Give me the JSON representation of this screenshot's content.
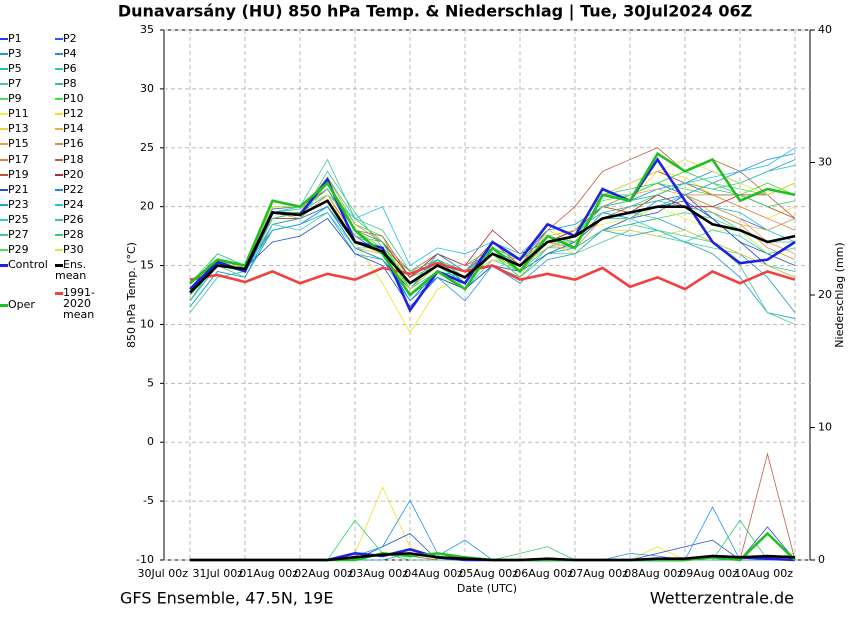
{
  "chart_data": {
    "type": "line",
    "title": "Dunavarsány  (HU)  850 hPa Temp. & Niederschlag | Tue, 30Jul2024 06Z",
    "ylabel": "850 hPa Temp. (°C)",
    "y2label": "Niederschlag (mm)",
    "xlabel": "Date (UTC)",
    "footer_left": "GFS Ensemble, 47.5N, 19E",
    "footer_right": "Wetterzentrale.de",
    "categories": [
      "30Jul 00z",
      null,
      "31Jul 00z",
      null,
      "01Aug 00z",
      null,
      "02Aug 00z",
      null,
      "03Aug 00z",
      null,
      "04Aug 00z",
      null,
      "05Aug 00z",
      null,
      "06Aug 00z",
      null,
      "07Aug 00z",
      null,
      "08Aug 00z",
      null,
      "09Aug 00z",
      null,
      "10Aug 00z"
    ],
    "ylim": [
      -10,
      35
    ],
    "yticks": [
      -10,
      -5,
      0,
      5,
      10,
      15,
      20,
      25,
      30,
      35
    ],
    "y2lim": [
      0,
      40
    ],
    "y2ticks": [
      0,
      10,
      20,
      30,
      40
    ],
    "grid": true,
    "series": [
      {
        "name": "P1",
        "color": "#2040e0",
        "values": [
          12.5,
          15.2,
          14.5,
          19,
          19,
          20,
          16.5,
          15.5,
          13,
          15.5,
          13.5,
          16.5,
          15,
          17.5,
          16.5,
          18,
          19,
          19.5,
          21,
          19,
          17,
          15,
          14
        ]
      },
      {
        "name": "P2",
        "color": "#2060f0",
        "values": [
          13,
          15.5,
          15,
          19.8,
          20,
          21.5,
          17.5,
          16,
          12,
          14.5,
          14,
          17,
          15.5,
          18,
          18.5,
          20,
          21,
          22,
          21,
          20,
          19,
          18,
          19
        ]
      },
      {
        "name": "P3",
        "color": "#20a0c0",
        "values": [
          11.5,
          14.5,
          14,
          18,
          18.5,
          19.5,
          16,
          15.5,
          12.5,
          14,
          13,
          15,
          14,
          16,
          16.5,
          18,
          18.5,
          19,
          18,
          17,
          16,
          14,
          11
        ]
      },
      {
        "name": "P4",
        "color": "#2090e0",
        "values": [
          12,
          15,
          15,
          19,
          19.5,
          20.5,
          17,
          16.5,
          14,
          16,
          14.5,
          16.5,
          15.5,
          17,
          18,
          20,
          20.5,
          21.5,
          22,
          23,
          22,
          23,
          24
        ]
      },
      {
        "name": "P5",
        "color": "#20c0c0",
        "values": [
          12.8,
          15.5,
          14.8,
          19.5,
          19.8,
          21.5,
          18,
          17,
          13,
          14.5,
          14,
          16,
          15,
          17,
          17,
          19.5,
          19,
          20,
          21,
          20,
          19.5,
          18,
          17
        ]
      },
      {
        "name": "P6",
        "color": "#30c8b0",
        "values": [
          11,
          14,
          14.5,
          18,
          18.5,
          20,
          17,
          16,
          14,
          15.5,
          13,
          15.5,
          14.5,
          16.5,
          17.5,
          19,
          20,
          21,
          22,
          21.5,
          22,
          23,
          23.5
        ]
      },
      {
        "name": "P7",
        "color": "#40d090",
        "values": [
          13,
          15,
          14.5,
          19,
          19.5,
          22.5,
          19,
          17,
          14,
          15,
          14.5,
          16,
          14,
          16,
          16,
          17,
          18,
          17.5,
          17,
          16.5,
          16,
          15,
          14.5
        ]
      },
      {
        "name": "P8",
        "color": "#30c880",
        "values": [
          12.5,
          15,
          14,
          18.5,
          19,
          23,
          19.5,
          16.5,
          14.5,
          16,
          15,
          16.5,
          15,
          17,
          18,
          21,
          21.5,
          22,
          23,
          22,
          21,
          20,
          19
        ]
      },
      {
        "name": "P9",
        "color": "#50e060",
        "values": [
          12,
          15.5,
          14.5,
          19,
          19,
          22,
          18,
          16,
          13.5,
          15,
          14,
          15.5,
          14.5,
          17,
          17,
          19,
          19.5,
          19,
          19.5,
          19,
          18,
          16,
          15
        ]
      },
      {
        "name": "P10",
        "color": "#40e030",
        "values": [
          13.5,
          16,
          15,
          20,
          20,
          22,
          18.5,
          17.5,
          13,
          15,
          13.5,
          16,
          14.5,
          17,
          18,
          21,
          21,
          22,
          21.5,
          21,
          21,
          22,
          21
        ]
      },
      {
        "name": "P11",
        "color": "#f0f040",
        "values": [
          12.5,
          15.5,
          15,
          20.5,
          20,
          21,
          17,
          16.5,
          14,
          15.5,
          14,
          16.5,
          15,
          17.5,
          18,
          18.5,
          19,
          20,
          19,
          18,
          18,
          16,
          15
        ]
      },
      {
        "name": "P12",
        "color": "#f0e020",
        "values": [
          13,
          15,
          15,
          20,
          20,
          21,
          17,
          13.5,
          9.3,
          13,
          14,
          16,
          14,
          18,
          17,
          21.5,
          20.5,
          23,
          22.5,
          21,
          20,
          19,
          20
        ],
        "precip": [
          0,
          0,
          0,
          0,
          0,
          0,
          0.5,
          5.5,
          1,
          0,
          0,
          0,
          0,
          0,
          0,
          0,
          0,
          1,
          0,
          0,
          0,
          0,
          0
        ]
      },
      {
        "name": "P13",
        "color": "#f0d040",
        "values": [
          12.5,
          15.5,
          14.5,
          19,
          19.5,
          20.5,
          17,
          16,
          13,
          15,
          14,
          15.5,
          15,
          17,
          16,
          18,
          18,
          17.5,
          18,
          17,
          16,
          15,
          14
        ]
      },
      {
        "name": "P14",
        "color": "#e8b040",
        "values": [
          12,
          15,
          14.8,
          18.5,
          19,
          20,
          16.5,
          16,
          13.5,
          15.5,
          14.5,
          16,
          15,
          16.5,
          17,
          19.5,
          20,
          20.5,
          21,
          19.5,
          18.5,
          18,
          19
        ]
      },
      {
        "name": "P15",
        "color": "#e8a040",
        "values": [
          12.8,
          15,
          15,
          19.5,
          19,
          21,
          17.5,
          16.5,
          13,
          15,
          14,
          16.5,
          15.5,
          17.5,
          18,
          20,
          21,
          21.5,
          21,
          20,
          19,
          17,
          16
        ]
      },
      {
        "name": "P16",
        "color": "#d09040",
        "values": [
          12.5,
          15.5,
          14.5,
          19,
          19.5,
          22.5,
          18.5,
          17,
          14,
          15.5,
          14,
          17,
          15,
          17,
          16.5,
          19,
          19.5,
          21,
          20,
          19.5,
          18.5,
          16.5,
          15.5
        ]
      },
      {
        "name": "P17",
        "color": "#d88050",
        "values": [
          13,
          15,
          14.5,
          19,
          19.5,
          21,
          17.5,
          17,
          14.5,
          16,
          15,
          16,
          15.5,
          17,
          17.5,
          19,
          20,
          20.5,
          21,
          21,
          20,
          19,
          18
        ]
      },
      {
        "name": "P18",
        "color": "#c06040",
        "values": [
          12.5,
          15.5,
          15,
          19.5,
          20,
          21.5,
          18,
          17.5,
          14,
          15.5,
          14.5,
          17,
          15,
          18,
          20,
          23,
          24,
          25,
          23,
          24,
          23,
          21,
          19
        ],
        "precip": [
          0,
          0,
          0,
          0,
          0,
          0,
          0,
          0.5,
          0.3,
          0,
          0,
          0,
          0,
          0,
          0,
          0,
          0,
          0,
          0,
          0,
          0,
          8,
          0
        ]
      },
      {
        "name": "P19",
        "color": "#c05030",
        "values": [
          12,
          15,
          14.5,
          19,
          19,
          20,
          17,
          16,
          13,
          15,
          14,
          16,
          15,
          17,
          18,
          21,
          22,
          23,
          22,
          21,
          21,
          20,
          19
        ]
      },
      {
        "name": "P20",
        "color": "#b03030",
        "values": [
          13,
          15.5,
          15,
          19.5,
          19.5,
          22,
          18,
          17,
          14,
          16,
          15,
          18,
          16,
          17,
          18,
          20,
          19.5,
          21,
          20,
          20,
          21,
          21,
          22
        ]
      },
      {
        "name": "P21",
        "color": "#2050d0",
        "values": [
          12.5,
          15,
          14.8,
          17,
          17.5,
          19,
          16,
          15,
          11.5,
          14,
          13,
          15,
          14.5,
          16,
          17,
          19,
          19.5,
          20,
          20.5,
          19,
          17,
          16,
          15
        ],
        "precip": [
          0,
          0,
          0,
          0,
          0,
          0,
          0,
          1,
          2,
          0,
          0,
          0,
          0,
          0,
          0,
          0,
          0,
          0.5,
          1,
          1.5,
          0,
          2.5,
          0
        ]
      },
      {
        "name": "P22",
        "color": "#2090f0",
        "values": [
          12,
          15,
          15,
          18,
          18.5,
          20,
          17,
          16.5,
          13,
          16,
          14.5,
          16.5,
          15,
          17.5,
          18,
          19.5,
          19,
          20.5,
          21,
          22,
          23,
          24,
          24.5
        ],
        "precip": [
          0,
          0,
          0,
          0,
          0,
          0,
          0.3,
          1,
          4.5,
          0.5,
          0,
          0,
          0,
          0,
          0,
          0,
          0.5,
          0.3,
          0,
          4,
          0,
          0,
          0
        ]
      },
      {
        "name": "P23",
        "color": "#20a0d0",
        "values": [
          11.5,
          14.5,
          14,
          18.5,
          19,
          20,
          16.5,
          15.5,
          12,
          14,
          12,
          15,
          13.5,
          15.5,
          16,
          18,
          17.5,
          18,
          17,
          16,
          14,
          11,
          10.5
        ],
        "precip": [
          0,
          0,
          0,
          0,
          0,
          0,
          0,
          0,
          0.5,
          0.3,
          1.5,
          0,
          0,
          0,
          0,
          0,
          0,
          0,
          0,
          0,
          0,
          0,
          0
        ]
      },
      {
        "name": "P24",
        "color": "#20c0f0",
        "values": [
          12.5,
          15.5,
          15,
          19,
          19.5,
          21,
          19,
          20,
          15,
          16.5,
          16,
          17,
          16,
          18,
          18.5,
          20,
          20.5,
          21,
          22,
          22.5,
          23,
          23.5,
          25
        ]
      },
      {
        "name": "P25",
        "color": "#30d0c0",
        "values": [
          12,
          15,
          14.5,
          18.5,
          18,
          19.5,
          16.5,
          16.5,
          13.5,
          15.5,
          14.5,
          16,
          15,
          17,
          17.5,
          19,
          19,
          18,
          17,
          18,
          17.5,
          16,
          16.5
        ]
      },
      {
        "name": "P26",
        "color": "#40c0a0",
        "values": [
          13,
          16,
          15,
          19.5,
          20,
          24,
          19,
          18,
          14.5,
          15.5,
          14,
          16.5,
          15.5,
          17.5,
          17,
          19.5,
          20,
          20.5,
          20,
          19.5,
          18,
          17,
          17
        ]
      },
      {
        "name": "P27",
        "color": "#40d080",
        "values": [
          12.5,
          15,
          14.5,
          19,
          19.5,
          21.5,
          17.5,
          16.5,
          13.5,
          15,
          13.5,
          16,
          14,
          16.5,
          16.5,
          18,
          18.5,
          18,
          17.5,
          17,
          15,
          11,
          10
        ]
      },
      {
        "name": "P28",
        "color": "#30d070",
        "values": [
          12,
          15.5,
          14.8,
          19.5,
          19.5,
          22,
          18,
          17,
          13,
          15.5,
          14,
          16.5,
          15,
          17,
          17.5,
          20,
          20.5,
          21,
          22,
          21.5,
          21,
          20,
          20.5
        ],
        "precip": [
          0,
          0,
          0,
          0,
          0,
          0,
          3,
          0.5,
          0,
          0,
          0,
          0,
          0.5,
          1,
          0,
          0,
          0,
          0,
          0,
          0,
          3,
          0,
          0.5
        ]
      },
      {
        "name": "P29",
        "color": "#50e050",
        "values": [
          12.8,
          15.5,
          15,
          20,
          20,
          22,
          18,
          16.5,
          13,
          15,
          14,
          16.5,
          15.5,
          17,
          17.5,
          20.5,
          21,
          22,
          23,
          22,
          21.5,
          21,
          22
        ]
      },
      {
        "name": "P30",
        "color": "#e0e040",
        "values": [
          13,
          15,
          15,
          20,
          20,
          21,
          17,
          16,
          13,
          15,
          14,
          16,
          15,
          17.5,
          18,
          21,
          22,
          23,
          24,
          23,
          22,
          21,
          22
        ]
      },
      {
        "name": "Control",
        "color": "#2020e0",
        "values": [
          13,
          15.3,
          14.5,
          19.5,
          19.3,
          22.3,
          17,
          16.5,
          11.2,
          14.5,
          13.5,
          17,
          15.5,
          18.5,
          17.5,
          21.5,
          20.5,
          24,
          20.5,
          17,
          15.2,
          15.5,
          17
        ],
        "precip": [
          0,
          0,
          0,
          0,
          0,
          0,
          0.5,
          0.3,
          0.8,
          0.2,
          0,
          0,
          0,
          0,
          0,
          0,
          0,
          0,
          0,
          0.3,
          0.2,
          0.1,
          0
        ]
      },
      {
        "name": "Ens. mean",
        "color": "#000000",
        "values": [
          12.7,
          15,
          14.7,
          19.5,
          19.3,
          20.5,
          17,
          16.2,
          13.5,
          15,
          14,
          16,
          15,
          17,
          17.5,
          19,
          19.5,
          20,
          20,
          18.5,
          18,
          17,
          17.5
        ],
        "precip": [
          0,
          0,
          0,
          0,
          0,
          0,
          0.2,
          0.4,
          0.5,
          0.2,
          0.1,
          0,
          0,
          0.1,
          0,
          0,
          0,
          0.1,
          0.1,
          0.3,
          0.2,
          0.3,
          0.2
        ]
      },
      {
        "name": "1991-2020 mean",
        "color": "#f04040",
        "values": [
          13.8,
          14.2,
          13.6,
          14.5,
          13.5,
          14.3,
          13.8,
          14.8,
          14.3,
          15.2,
          14.5,
          15,
          13.8,
          14.3,
          13.8,
          14.8,
          13.2,
          14,
          13,
          14.5,
          13.5,
          14.5,
          13.8
        ]
      },
      {
        "name": "Oper",
        "color": "#20c020",
        "values": [
          13.5,
          15.5,
          15,
          20.5,
          20,
          22,
          18,
          16,
          12.5,
          14.5,
          13,
          16.5,
          14.5,
          17.5,
          16.5,
          21,
          20.5,
          24.5,
          23,
          24,
          20.5,
          21.5,
          21
        ],
        "precip": [
          0,
          0,
          0,
          0,
          0,
          0,
          0,
          0.5,
          0.3,
          0.5,
          0.2,
          0,
          0,
          0,
          0,
          0,
          0,
          0,
          0,
          0.2,
          0,
          2,
          0
        ]
      }
    ]
  }
}
